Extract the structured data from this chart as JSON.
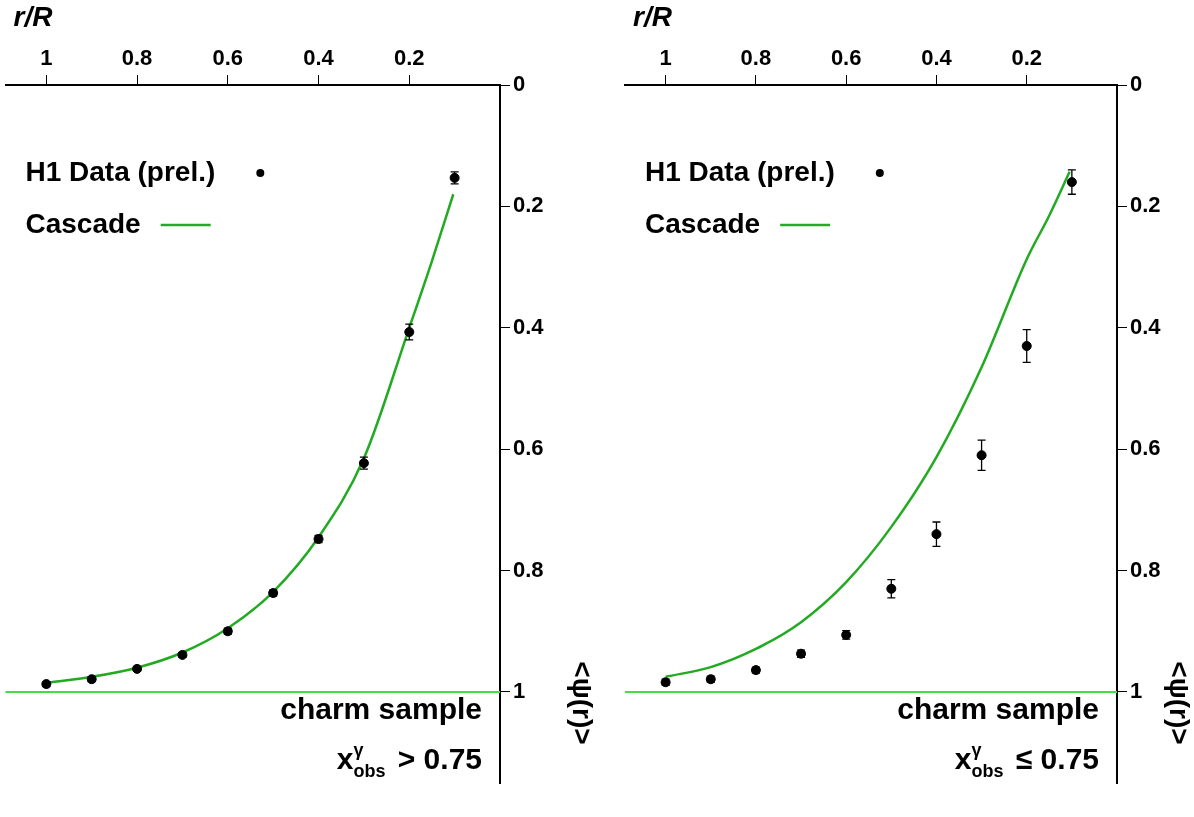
{
  "chart_data": [
    {
      "type": "scatter",
      "xlabel": "r/R",
      "ylabel": "<ψ(r)>",
      "annotations": [
        "charm sample",
        "x$^{γ}$$_{obs}$ > 0.75"
      ],
      "xlim": [
        1.09,
        0
      ],
      "xticks": [
        0.2,
        0.4,
        0.6,
        0.8,
        1
      ],
      "ylim": [
        1.15,
        0
      ],
      "yticks": [
        0,
        0.2,
        0.4,
        0.6,
        0.8,
        1
      ],
      "grid": false,
      "legend": "top left",
      "ref_lines": [
        {
          "axis": "y",
          "value": 1,
          "color": "#44dd44"
        }
      ],
      "series": [
        {
          "name": "H1 Data (prel.)",
          "type": "scatter",
          "marker": "circle",
          "color": "#000000",
          "x": [
            0.1,
            0.2,
            0.3,
            0.4,
            0.5,
            0.6,
            0.7,
            0.8,
            0.9,
            1.0
          ],
          "values": [
            0.153,
            0.407,
            0.623,
            0.748,
            0.837,
            0.9,
            0.939,
            0.962,
            0.979,
            0.987
          ],
          "errors": [
            0.01,
            0.013,
            0.01,
            0.006,
            0.005,
            0.005,
            0.004,
            0.004,
            0.004,
            0.004
          ]
        },
        {
          "name": "Cascade",
          "type": "line",
          "color": "#22aa22",
          "x": [
            0.103,
            0.15,
            0.2,
            0.3,
            0.4,
            0.5,
            0.6,
            0.7,
            0.8,
            0.9,
            1.0
          ],
          "values": [
            0.18,
            0.29,
            0.4,
            0.615,
            0.745,
            0.835,
            0.895,
            0.935,
            0.96,
            0.975,
            0.985
          ]
        }
      ]
    },
    {
      "type": "scatter",
      "xlabel": "r/R",
      "ylabel": "<ψ(r)>",
      "annotations": [
        "charm sample",
        "x$^{γ}$$_{obs}$ ≤ 0.75"
      ],
      "xlim": [
        1.09,
        0
      ],
      "xticks": [
        0.2,
        0.4,
        0.6,
        0.8,
        1
      ],
      "ylim": [
        1.15,
        0
      ],
      "yticks": [
        0,
        0.2,
        0.4,
        0.6,
        0.8,
        1
      ],
      "grid": false,
      "legend": "top left",
      "ref_lines": [
        {
          "axis": "y",
          "value": 1,
          "color": "#44dd44"
        }
      ],
      "series": [
        {
          "name": "H1 Data (prel.)",
          "type": "scatter",
          "marker": "circle",
          "color": "#000000",
          "x": [
            0.1,
            0.2,
            0.3,
            0.4,
            0.5,
            0.6,
            0.7,
            0.8,
            0.9,
            1.0
          ],
          "values": [
            0.16,
            0.43,
            0.61,
            0.74,
            0.83,
            0.906,
            0.937,
            0.964,
            0.979,
            0.984
          ],
          "errors": [
            0.02,
            0.027,
            0.025,
            0.02,
            0.015,
            0.007,
            0.006,
            0.005,
            0.005,
            0.005
          ]
        },
        {
          "name": "Cascade",
          "type": "line",
          "color": "#22aa22",
          "x": [
            0.105,
            0.15,
            0.2,
            0.3,
            0.4,
            0.5,
            0.6,
            0.7,
            0.8,
            0.9,
            1.0
          ],
          "values": [
            0.143,
            0.215,
            0.287,
            0.465,
            0.613,
            0.728,
            0.819,
            0.885,
            0.929,
            0.959,
            0.975
          ]
        }
      ]
    }
  ]
}
